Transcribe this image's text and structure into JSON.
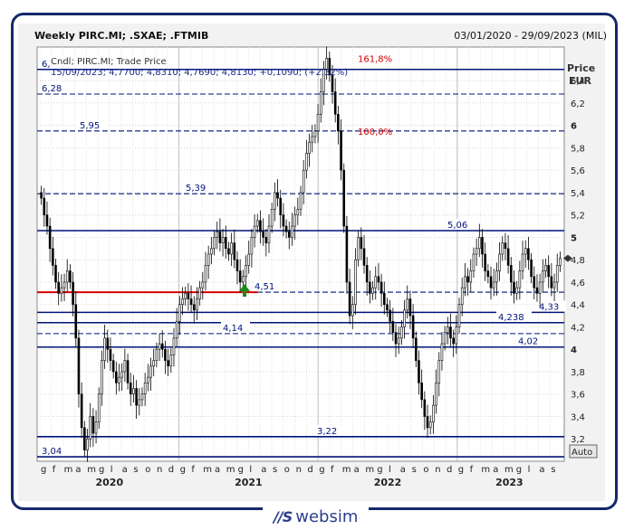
{
  "header": {
    "title": "Weekly PIRC.MI; .SXAE; .FTMIB",
    "date_range": "03/01/2020 - 29/09/2023 (MIL)"
  },
  "legend": {
    "line1": "Cndl; PIRC.MI; Trade Price",
    "line2": "15/09/2023; 4,7700; 4,8310; 4,7690; 4,8130; +0,1090; (+2,32%)"
  },
  "axis": {
    "price_label": "Price",
    "currency_label": "EUR",
    "auto_button": "Auto"
  },
  "colors": {
    "level_line": "#00147a",
    "fib_text": "#cc0000",
    "support_red": "#d40000",
    "candle": "#000000",
    "arrow": "#1a8a1a"
  },
  "chart_data": {
    "type": "candlestick",
    "ylim": [
      3.0,
      6.7
    ],
    "y_ticks": [
      "6,4",
      "6,2",
      "6",
      "5,8",
      "5,6",
      "5,4",
      "5,2",
      "5",
      "4,8",
      "4,6",
      "4,4",
      "4,2",
      "4",
      "3,8",
      "3,6",
      "3,4",
      "3,2"
    ],
    "y_tick_values": [
      6.4,
      6.2,
      6.0,
      5.8,
      5.6,
      5.4,
      5.2,
      5.0,
      4.8,
      4.6,
      4.4,
      4.2,
      4.0,
      3.8,
      3.6,
      3.4,
      3.2
    ],
    "x_month_labels": [
      "g",
      "f",
      "m",
      "a",
      "m",
      "g",
      "l",
      "a",
      "s",
      "o",
      "n",
      "d",
      "g",
      "f",
      "m",
      "a",
      "m",
      "g",
      "l",
      "a",
      "s",
      "o",
      "n",
      "d",
      "g",
      "f",
      "m",
      "a",
      "m",
      "g",
      "l",
      "a",
      "s",
      "o",
      "n",
      "d",
      "g",
      "f",
      "m",
      "a",
      "m",
      "g",
      "l",
      "a",
      "s"
    ],
    "years": [
      "2020",
      "2021",
      "2022",
      "2023"
    ],
    "levels": [
      {
        "label": "6,",
        "value": 6.5,
        "style": "solid"
      },
      {
        "label": "6,28",
        "value": 6.28,
        "style": "dashed"
      },
      {
        "label": "5,95",
        "value": 5.95,
        "style": "dashed"
      },
      {
        "label": "5,39",
        "value": 5.39,
        "style": "dashed"
      },
      {
        "label": "5,06",
        "value": 5.06,
        "style": "solid"
      },
      {
        "label": "4,51",
        "value": 4.51,
        "style": "dashed"
      },
      {
        "label": "4,33",
        "value": 4.33,
        "style": "solid"
      },
      {
        "label": "4,238",
        "value": 4.238,
        "style": "solid"
      },
      {
        "label": "4,14",
        "value": 4.14,
        "style": "dashed"
      },
      {
        "label": "4,02",
        "value": 4.02,
        "style": "solid"
      },
      {
        "label": "3,22",
        "value": 3.22,
        "style": "solid"
      },
      {
        "label": "3,04",
        "value": 3.04,
        "style": "solid"
      }
    ],
    "fib_labels": [
      {
        "label": "161,8%",
        "value": 6.6
      },
      {
        "label": "100,0%",
        "value": 5.95
      }
    ],
    "support_segment": {
      "value": 4.51,
      "start_week": 0,
      "end_week": 75
    },
    "last_close": 4.813,
    "close": [
      5.35,
      5.2,
      5.1,
      4.9,
      4.75,
      4.6,
      4.5,
      4.55,
      4.6,
      4.7,
      4.6,
      4.4,
      4.1,
      3.6,
      3.3,
      3.1,
      3.2,
      3.4,
      3.25,
      3.35,
      3.6,
      3.9,
      4.1,
      4.0,
      3.9,
      3.8,
      3.7,
      3.75,
      3.8,
      3.9,
      3.7,
      3.6,
      3.65,
      3.5,
      3.55,
      3.6,
      3.7,
      3.75,
      3.85,
      3.9,
      4.0,
      4.05,
      4.0,
      3.9,
      3.85,
      3.95,
      4.1,
      4.25,
      4.4,
      4.45,
      4.5,
      4.45,
      4.4,
      4.35,
      4.45,
      4.55,
      4.6,
      4.75,
      4.85,
      4.9,
      5.0,
      5.05,
      4.95,
      5.0,
      4.9,
      4.85,
      4.95,
      4.8,
      4.7,
      4.6,
      4.65,
      4.75,
      4.85,
      5.0,
      5.1,
      5.15,
      5.05,
      5.0,
      4.95,
      5.1,
      5.25,
      5.4,
      5.35,
      5.2,
      5.1,
      5.05,
      5.0,
      5.1,
      5.2,
      5.25,
      5.4,
      5.6,
      5.75,
      5.85,
      5.9,
      5.95,
      6.1,
      6.3,
      6.5,
      6.6,
      6.45,
      6.3,
      6.1,
      5.95,
      5.6,
      5.1,
      4.6,
      4.3,
      4.4,
      4.8,
      5.0,
      4.9,
      4.75,
      4.6,
      4.5,
      4.55,
      4.65,
      4.6,
      4.5,
      4.4,
      4.35,
      4.25,
      4.15,
      4.05,
      4.1,
      4.2,
      4.35,
      4.45,
      4.3,
      4.1,
      3.9,
      3.7,
      3.55,
      3.4,
      3.3,
      3.35,
      3.5,
      3.7,
      3.9,
      4.05,
      4.15,
      4.2,
      4.1,
      4.05,
      4.2,
      4.4,
      4.55,
      4.65,
      4.6,
      4.7,
      4.85,
      4.9,
      5.0,
      4.85,
      4.7,
      4.65,
      4.55,
      4.6,
      4.7,
      4.85,
      4.95,
      4.9,
      4.75,
      4.6,
      4.5,
      4.55,
      4.7,
      4.85,
      4.9,
      4.8,
      4.65,
      4.55,
      4.5,
      4.6,
      4.7,
      4.75,
      4.65,
      4.55,
      4.6,
      4.75,
      4.813
    ]
  }
}
